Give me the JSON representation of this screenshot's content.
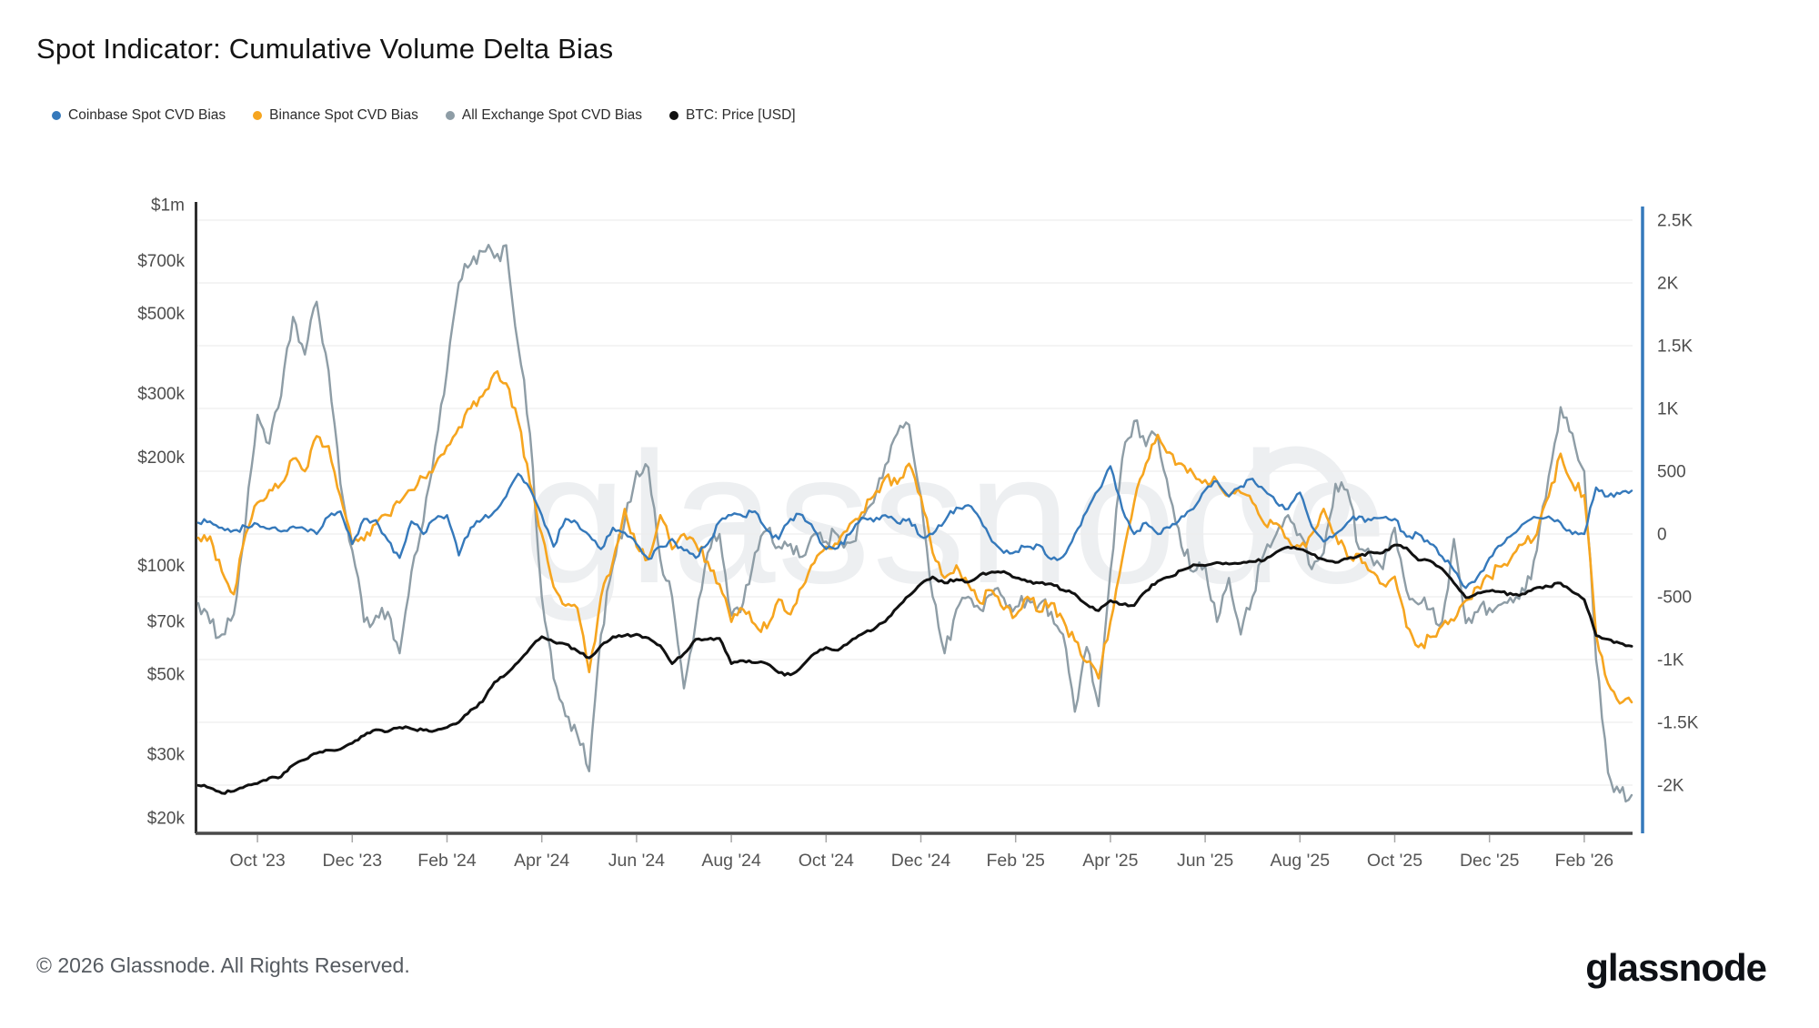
{
  "title": "Spot Indicator: Cumulative Volume Delta Bias",
  "legend": [
    {
      "label": "Coinbase Spot CVD Bias",
      "color": "#3579bb"
    },
    {
      "label": "Binance Spot CVD Bias",
      "color": "#f6a51f"
    },
    {
      "label": "All Exchange Spot CVD Bias",
      "color": "#8e9da6"
    },
    {
      "label": "BTC: Price [USD]",
      "color": "#111111"
    }
  ],
  "watermark": {
    "text": "glassnode",
    "color": "#edeff1"
  },
  "footer": {
    "copyright": "© 2026 Glassnode. All Rights Reserved.",
    "brand": "glassnode"
  },
  "chart_data": {
    "type": "line",
    "title": "Spot Indicator: Cumulative Volume Delta Bias",
    "x_unit": "months since 2023-09-01",
    "x_start": -0.25,
    "x_step": 0.25,
    "x_tick_positions": [
      1,
      3,
      5,
      7,
      9,
      11,
      13,
      15,
      17,
      19,
      21,
      23,
      25,
      27,
      29
    ],
    "x_tick_labels": [
      "Oct '23",
      "Dec '23",
      "Feb '24",
      "Apr '24",
      "Jun '24",
      "Aug '24",
      "Oct '24",
      "Dec '24",
      "Feb '25",
      "Apr '25",
      "Jun '25",
      "Aug '25",
      "Oct '25",
      "Dec '25",
      "Feb '26"
    ],
    "left_axis": {
      "scale": "log",
      "unit": "BTC price, thousand USD",
      "ticks": [
        {
          "label": "$1m",
          "value": 1000
        },
        {
          "label": "$700k",
          "value": 700
        },
        {
          "label": "$500k",
          "value": 500
        },
        {
          "label": "$300k",
          "value": 300
        },
        {
          "label": "$200k",
          "value": 200
        },
        {
          "label": "$100k",
          "value": 100
        },
        {
          "label": "$70k",
          "value": 70
        },
        {
          "label": "$50k",
          "value": 50
        },
        {
          "label": "$30k",
          "value": 30
        },
        {
          "label": "$20k",
          "value": 20
        }
      ]
    },
    "right_axis": {
      "scale": "linear",
      "unit": "CVD bias",
      "ticks": [
        {
          "label": "2.5K",
          "value": 2500
        },
        {
          "label": "2K",
          "value": 2000
        },
        {
          "label": "1.5K",
          "value": 1500
        },
        {
          "label": "1K",
          "value": 1000
        },
        {
          "label": "500",
          "value": 500
        },
        {
          "label": "0",
          "value": 0
        },
        {
          "label": "-500",
          "value": -500
        },
        {
          "label": "-1K",
          "value": -1000
        },
        {
          "label": "-1.5K",
          "value": -1500
        },
        {
          "label": "-2K",
          "value": -2000
        }
      ],
      "grid": true
    },
    "series": [
      {
        "name": "All Exchange Spot CVD Bias",
        "axis": "right",
        "color": "#8e9da6",
        "width": 2.4,
        "jitter": 80,
        "values": [
          -550,
          -710,
          -800,
          -640,
          100,
          950,
          720,
          1100,
          1730,
          1430,
          1850,
          1300,
          400,
          -130,
          -700,
          -650,
          -620,
          -950,
          -300,
          100,
          700,
          1300,
          2000,
          2150,
          2250,
          2200,
          2300,
          1500,
          800,
          -500,
          -1150,
          -1450,
          -1600,
          -1890,
          -800,
          -250,
          100,
          500,
          530,
          -200,
          -500,
          -1230,
          -700,
          -150,
          0,
          -650,
          -550,
          -150,
          30,
          -100,
          -80,
          -180,
          0,
          -60,
          -10,
          -70,
          120,
          250,
          550,
          800,
          870,
          300,
          -500,
          -950,
          -600,
          -500,
          -600,
          -480,
          -510,
          -580,
          -520,
          -560,
          -620,
          -800,
          -1415,
          -900,
          -1370,
          -300,
          600,
          900,
          700,
          775,
          300,
          -100,
          -300,
          -250,
          -700,
          -350,
          -800,
          -500,
          -150,
          0,
          150,
          0,
          -280,
          -150,
          400,
          350,
          -120,
          -180,
          -280,
          50,
          -450,
          -560,
          -600,
          -700,
          -40,
          -710,
          -620,
          -590,
          -560,
          -545,
          -460,
          -130,
          460,
          1010,
          800,
          500,
          -1000,
          -1900,
          -2060,
          -2080
        ]
      },
      {
        "name": "Binance Spot CVD Bias",
        "axis": "right",
        "color": "#f6a51f",
        "width": 2.6,
        "jitter": 55,
        "values": [
          -30,
          -20,
          -300,
          -480,
          0,
          250,
          350,
          400,
          600,
          500,
          780,
          700,
          300,
          -80,
          -50,
          80,
          150,
          250,
          350,
          450,
          550,
          700,
          850,
          1000,
          1100,
          1280,
          1200,
          900,
          400,
          0,
          -420,
          -570,
          -590,
          -1100,
          -500,
          -220,
          200,
          -100,
          -200,
          150,
          -120,
          0,
          -80,
          -220,
          -400,
          -700,
          -600,
          -720,
          -750,
          -520,
          -640,
          -420,
          -230,
          -100,
          -80,
          80,
          170,
          300,
          450,
          400,
          560,
          300,
          -150,
          -350,
          -250,
          -400,
          -550,
          -450,
          -600,
          -650,
          -500,
          -620,
          -550,
          -680,
          -850,
          -1020,
          -1150,
          -700,
          -200,
          250,
          560,
          790,
          650,
          560,
          480,
          430,
          420,
          300,
          330,
          250,
          80,
          85,
          -40,
          -100,
          0,
          200,
          -10,
          -180,
          -160,
          -300,
          -400,
          -340,
          -740,
          -900,
          -820,
          -730,
          -690,
          -530,
          -420,
          -340,
          -260,
          -160,
          -70,
          0,
          300,
          640,
          400,
          310,
          -800,
          -1190,
          -1350,
          -1340
        ]
      },
      {
        "name": "Coinbase Spot CVD Bias",
        "axis": "right",
        "color": "#3579bb",
        "width": 2.4,
        "jitter": 28,
        "values": [
          90,
          100,
          50,
          30,
          60,
          80,
          40,
          20,
          60,
          40,
          0,
          140,
          180,
          -80,
          120,
          110,
          -50,
          -190,
          100,
          0,
          120,
          150,
          -170,
          50,
          120,
          180,
          300,
          480,
          360,
          150,
          -100,
          120,
          85,
          -10,
          -120,
          50,
          10,
          -80,
          -200,
          -100,
          -40,
          -130,
          -190,
          -80,
          100,
          150,
          140,
          180,
          30,
          -40,
          120,
          150,
          30,
          -120,
          -110,
          0,
          130,
          100,
          150,
          90,
          120,
          -20,
          0,
          100,
          210,
          230,
          120,
          -60,
          -150,
          -140,
          -100,
          -90,
          -200,
          -180,
          0,
          180,
          350,
          540,
          200,
          0,
          90,
          0,
          50,
          140,
          200,
          350,
          420,
          300,
          380,
          440,
          350,
          250,
          200,
          330,
          60,
          -60,
          0,
          90,
          140,
          110,
          130,
          120,
          -20,
          0,
          -80,
          -180,
          -290,
          -430,
          -340,
          -190,
          -90,
          0,
          90,
          130,
          140,
          90,
          0,
          0,
          370,
          300,
          320,
          345
        ]
      },
      {
        "name": "BTC: Price [USD]",
        "axis": "left",
        "color": "#111111",
        "width": 3,
        "jitter": 0.01,
        "values": [
          24.6,
          24.2,
          23.4,
          23.7,
          24.5,
          24.9,
          25.8,
          26.0,
          28.0,
          29.0,
          30.2,
          30.8,
          31.0,
          32.2,
          33.8,
          35.1,
          34.7,
          35.6,
          35.3,
          35.0,
          34.9,
          35.6,
          36.8,
          39.8,
          42.0,
          47.5,
          50.0,
          54.0,
          59.0,
          63.5,
          61.5,
          60.6,
          58.0,
          55.5,
          60.0,
          63.5,
          64.0,
          64.5,
          63.0,
          60.0,
          53.5,
          57.0,
          62.5,
          62.5,
          62.8,
          53.5,
          54.5,
          53.8,
          53.5,
          50.5,
          49.8,
          52.8,
          57.0,
          59.3,
          58.3,
          61.5,
          64.5,
          66.5,
          70.0,
          76.5,
          82.5,
          89.0,
          93.0,
          89.5,
          91.5,
          90.0,
          94.3,
          96.0,
          96.3,
          92.5,
          90.3,
          89.5,
          89.0,
          85.5,
          83.5,
          78.0,
          75.0,
          80.0,
          78.0,
          77.5,
          85.0,
          90.5,
          93.0,
          97.0,
          100.5,
          100.0,
          102.0,
          101.0,
          101.5,
          102.5,
          103.5,
          109.0,
          112.5,
          111.0,
          107.5,
          104.0,
          102.0,
          104.5,
          106.5,
          109.0,
          108.5,
          114.0,
          112.0,
          103.5,
          103.0,
          98.0,
          89.5,
          81.5,
          84.0,
          85.0,
          84.5,
          83.0,
          83.5,
          86.9,
          87.5,
          89.4,
          84.5,
          80.5,
          64.0,
          62.5,
          61.0,
          59.8
        ]
      }
    ]
  }
}
